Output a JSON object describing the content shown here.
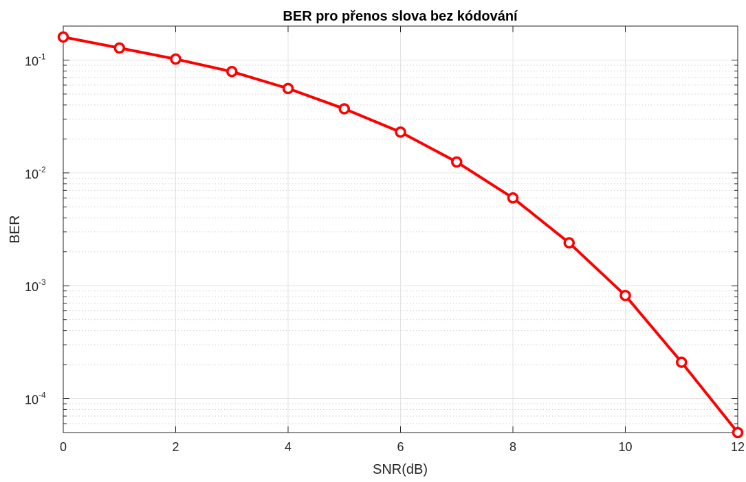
{
  "chart_data": {
    "type": "line",
    "title": "BER pro přenos slova bez kódování",
    "xlabel": "SNR(dB)",
    "ylabel": "BER",
    "xlim": [
      0,
      12
    ],
    "ylim": [
      5e-05,
      0.2
    ],
    "yscale": "log",
    "grid": true,
    "x": [
      0,
      1,
      2,
      3,
      4,
      5,
      6,
      7,
      8,
      9,
      10,
      11,
      12
    ],
    "xticks": [
      "0",
      "2",
      "4",
      "6",
      "8",
      "10",
      "12"
    ],
    "yticks": [
      {
        "base": "10",
        "exp": "-1"
      },
      {
        "base": "10",
        "exp": "-2"
      },
      {
        "base": "10",
        "exp": "-3"
      },
      {
        "base": "10",
        "exp": "-4"
      }
    ],
    "series": [
      {
        "values": [
          0.16,
          0.128,
          0.102,
          0.079,
          0.056,
          0.037,
          0.023,
          0.0125,
          0.006,
          0.0024,
          0.00082,
          0.00021,
          5e-05
        ],
        "color": "#ff0000",
        "marker": "circle"
      }
    ]
  }
}
